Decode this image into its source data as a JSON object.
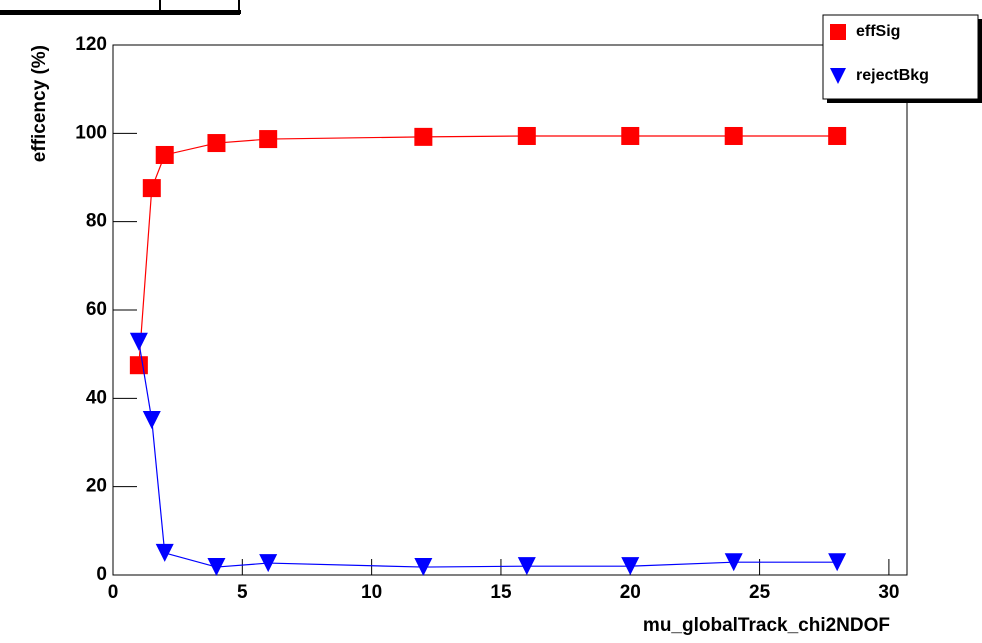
{
  "chart_data": {
    "type": "line",
    "x_label": "mu_globalTrack_chi2NDOF",
    "y_label": "efficency (%)",
    "xlim": [
      0,
      30.7
    ],
    "xticks": [
      0,
      5,
      10,
      15,
      20,
      25,
      30
    ],
    "ylim": [
      0,
      120
    ],
    "yticks": [
      0,
      20,
      40,
      60,
      80,
      100,
      120
    ],
    "legend": "top-right",
    "series": [
      {
        "name": "effSig",
        "color": "#ff0000",
        "marker": "square",
        "x": [
          1,
          1.5,
          2,
          4,
          6,
          12,
          16,
          20,
          24,
          28
        ],
        "values": [
          47.5,
          87.6,
          95.1,
          97.8,
          98.7,
          99.2,
          99.4,
          99.4,
          99.4,
          99.4
        ]
      },
      {
        "name": "rejectBkg",
        "color": "#0000ff",
        "marker": "triangle-down",
        "x": [
          1,
          1.5,
          2,
          4,
          6,
          12,
          16,
          20,
          24,
          28
        ],
        "values": [
          52.8,
          35.1,
          5.0,
          1.8,
          2.7,
          1.8,
          2.0,
          2.0,
          2.9,
          2.9
        ]
      }
    ]
  }
}
